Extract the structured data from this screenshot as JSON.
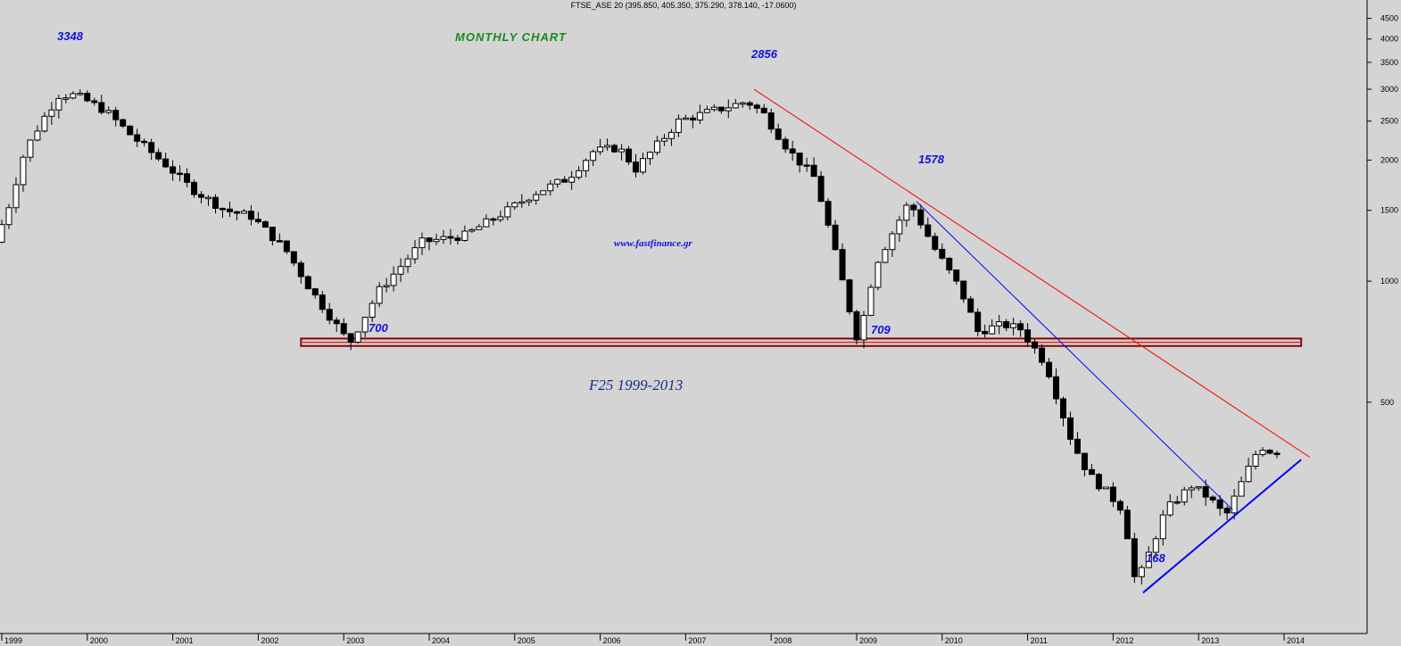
{
  "header": {
    "title": "FTSE_ASE 20 (395.850, 405.350, 375.290, 378.140, -17.0600)"
  },
  "annotations": {
    "chart_title": "MONTHLY CHART",
    "website": "www.fastfinance.gr",
    "signature": "F25 1999-2013",
    "peak_1999": "3348",
    "low_2003": "700",
    "peak_2007": "2856",
    "low_2009": "709",
    "peak_2009": "1578",
    "low_2012": "168"
  },
  "colors": {
    "background": "#d4d4d4",
    "bull_candle": "#ffffff",
    "bear_candle": "#000000",
    "resistance_line": "#ff0000",
    "trend_line": "#0000ff",
    "support_zone": "#8b0000",
    "labels": "#1010e0",
    "title_text": "#1a8a1a"
  },
  "chart_data": {
    "type": "candlestick",
    "title": "MONTHLY CHART",
    "yscale": "log",
    "y_ticks": [
      500,
      1000,
      1500,
      2000,
      2500,
      3000,
      3500,
      4000,
      4500
    ],
    "x_ticks": [
      "1999",
      "2000",
      "2001",
      "2002",
      "2003",
      "2004",
      "2005",
      "2006",
      "2007",
      "2008",
      "2009",
      "2010",
      "2011",
      "2012",
      "2013",
      "2014"
    ],
    "ylim": [
      140,
      4900
    ],
    "xlim": [
      1999.0,
      2014.95
    ],
    "anchor_points": [
      {
        "t": 1999.0,
        "v": 1250,
        "label": ""
      },
      {
        "t": 1999.15,
        "v": 1500,
        "label": ""
      },
      {
        "t": 1999.35,
        "v": 2100,
        "label": ""
      },
      {
        "t": 1999.55,
        "v": 2500,
        "label": ""
      },
      {
        "t": 1999.75,
        "v": 2900,
        "label": "3348"
      },
      {
        "t": 1999.95,
        "v": 2900,
        "label": ""
      },
      {
        "t": 2000.3,
        "v": 2650,
        "label": ""
      },
      {
        "t": 2000.6,
        "v": 2300,
        "label": ""
      },
      {
        "t": 2001.0,
        "v": 1950,
        "label": ""
      },
      {
        "t": 2001.3,
        "v": 1700,
        "label": ""
      },
      {
        "t": 2001.7,
        "v": 1500,
        "label": ""
      },
      {
        "t": 2002.0,
        "v": 1450,
        "label": ""
      },
      {
        "t": 2002.4,
        "v": 1200,
        "label": ""
      },
      {
        "t": 2002.7,
        "v": 950,
        "label": ""
      },
      {
        "t": 2003.15,
        "v": 700,
        "label": "700"
      },
      {
        "t": 2003.5,
        "v": 950,
        "label": ""
      },
      {
        "t": 2004.0,
        "v": 1250,
        "label": ""
      },
      {
        "t": 2004.5,
        "v": 1300,
        "label": ""
      },
      {
        "t": 2005.0,
        "v": 1500,
        "label": ""
      },
      {
        "t": 2005.3,
        "v": 1650,
        "label": ""
      },
      {
        "t": 2005.7,
        "v": 1800,
        "label": ""
      },
      {
        "t": 2006.0,
        "v": 2100,
        "label": ""
      },
      {
        "t": 2006.3,
        "v": 2150,
        "label": ""
      },
      {
        "t": 2006.5,
        "v": 1900,
        "label": ""
      },
      {
        "t": 2007.0,
        "v": 2500,
        "label": ""
      },
      {
        "t": 2007.4,
        "v": 2650,
        "label": ""
      },
      {
        "t": 2007.8,
        "v": 2800,
        "label": "2856"
      },
      {
        "t": 2008.0,
        "v": 2600,
        "label": ""
      },
      {
        "t": 2008.3,
        "v": 2100,
        "label": ""
      },
      {
        "t": 2008.6,
        "v": 1800,
        "label": ""
      },
      {
        "t": 2008.8,
        "v": 1250,
        "label": ""
      },
      {
        "t": 2009.0,
        "v": 850,
        "label": ""
      },
      {
        "t": 2009.1,
        "v": 709,
        "label": "709"
      },
      {
        "t": 2009.3,
        "v": 1100,
        "label": ""
      },
      {
        "t": 2009.7,
        "v": 1578,
        "label": "1578"
      },
      {
        "t": 2010.0,
        "v": 1200,
        "label": ""
      },
      {
        "t": 2010.3,
        "v": 950,
        "label": ""
      },
      {
        "t": 2010.5,
        "v": 750,
        "label": ""
      },
      {
        "t": 2010.8,
        "v": 780,
        "label": ""
      },
      {
        "t": 2011.0,
        "v": 760,
        "label": ""
      },
      {
        "t": 2011.3,
        "v": 620,
        "label": ""
      },
      {
        "t": 2011.6,
        "v": 400,
        "label": ""
      },
      {
        "t": 2011.8,
        "v": 330,
        "label": ""
      },
      {
        "t": 2012.0,
        "v": 300,
        "label": ""
      },
      {
        "t": 2012.2,
        "v": 270,
        "label": ""
      },
      {
        "t": 2012.35,
        "v": 175,
        "label": "168"
      },
      {
        "t": 2012.5,
        "v": 210,
        "label": ""
      },
      {
        "t": 2012.7,
        "v": 270,
        "label": ""
      },
      {
        "t": 2013.0,
        "v": 310,
        "label": ""
      },
      {
        "t": 2013.2,
        "v": 290,
        "label": ""
      },
      {
        "t": 2013.4,
        "v": 260,
        "label": ""
      },
      {
        "t": 2013.6,
        "v": 320,
        "label": ""
      },
      {
        "t": 2013.8,
        "v": 390,
        "label": ""
      },
      {
        "t": 2013.92,
        "v": 378,
        "label": ""
      }
    ],
    "lines": [
      {
        "name": "resistance",
        "color": "#ff0000",
        "from": {
          "t": 2007.8,
          "v": 3000
        },
        "to": {
          "t": 2014.3,
          "v": 365
        }
      },
      {
        "name": "trend",
        "color": "#0000ff",
        "from": {
          "t": 2009.7,
          "v": 1578
        },
        "to": {
          "t": 2013.4,
          "v": 270
        }
      },
      {
        "name": "support-trend",
        "color": "#0000ff",
        "from": {
          "t": 2012.35,
          "v": 168
        },
        "to": {
          "t": 2014.2,
          "v": 360
        }
      }
    ],
    "support_zone": {
      "from_t": 2002.5,
      "to_t": 2014.2,
      "v_low": 690,
      "v_high": 720
    }
  }
}
